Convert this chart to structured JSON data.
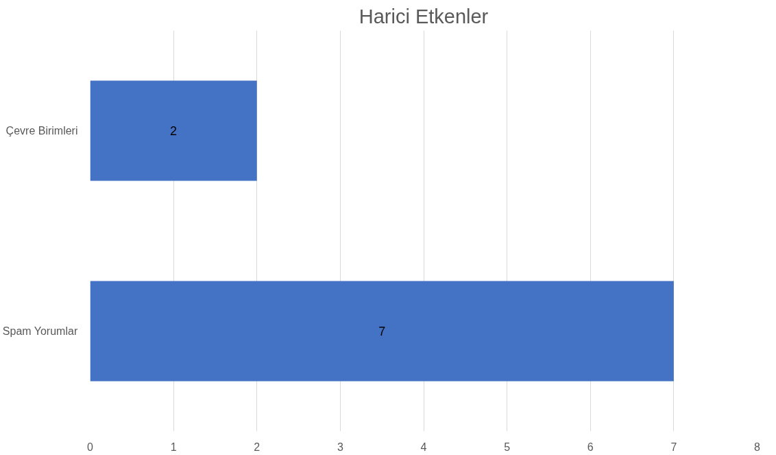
{
  "chart_data": {
    "type": "bar",
    "orientation": "horizontal",
    "title": "Harici Etkenler",
    "categories": [
      "Çevre Birimleri",
      "Spam Yorumlar"
    ],
    "values": [
      2,
      7
    ],
    "color": "#4472c4",
    "xlim": [
      0,
      8
    ],
    "xticks": [
      0,
      1,
      2,
      3,
      4,
      5,
      6,
      7,
      8
    ],
    "grid": "x",
    "data_labels": true
  }
}
